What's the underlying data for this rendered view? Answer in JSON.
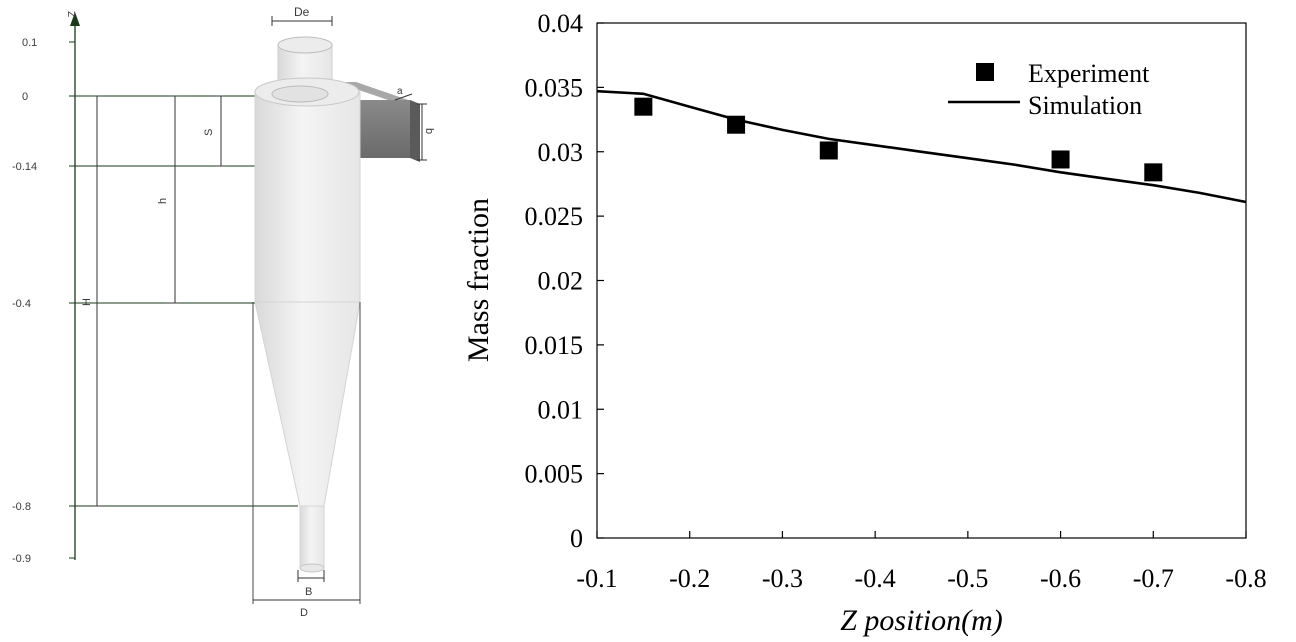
{
  "diagram": {
    "axis_label": "Z",
    "z_ticks": [
      "0.1",
      "0",
      "-0.14",
      "-0.4",
      "-0.8",
      "-0.9"
    ],
    "dims": {
      "De": "De",
      "a": "a",
      "b": "b",
      "S": "S",
      "h": "h",
      "H": "H",
      "B": "B",
      "D": "D"
    }
  },
  "chart_data": {
    "type": "scatter",
    "title": "",
    "xlabel": "Z position(m)",
    "ylabel": "Mass fraction",
    "xlim": [
      -0.1,
      -0.8
    ],
    "ylim": [
      0,
      0.04
    ],
    "x_ticks": [
      "-0.1",
      "-0.2",
      "-0.3",
      "-0.4",
      "-0.5",
      "-0.6",
      "-0.7",
      "-0.8"
    ],
    "y_ticks": [
      "0",
      "0.005",
      "0.01",
      "0.015",
      "0.02",
      "0.025",
      "0.03",
      "0.035",
      "0.04"
    ],
    "grid": false,
    "legend": "top-right",
    "series": [
      {
        "name": "Experiment",
        "kind": "markers",
        "x": [
          -0.15,
          -0.25,
          -0.35,
          -0.6,
          -0.7
        ],
        "y": [
          0.0335,
          0.0321,
          0.0301,
          0.0294,
          0.0284
        ]
      },
      {
        "name": "Simulation",
        "kind": "line",
        "x": [
          -0.1,
          -0.15,
          -0.2,
          -0.25,
          -0.3,
          -0.35,
          -0.4,
          -0.45,
          -0.5,
          -0.55,
          -0.6,
          -0.65,
          -0.7,
          -0.75,
          -0.8
        ],
        "y": [
          0.0347,
          0.0345,
          0.0335,
          0.0325,
          0.0317,
          0.031,
          0.0305,
          0.03,
          0.0295,
          0.029,
          0.0284,
          0.0279,
          0.0274,
          0.0268,
          0.0261
        ]
      }
    ]
  }
}
